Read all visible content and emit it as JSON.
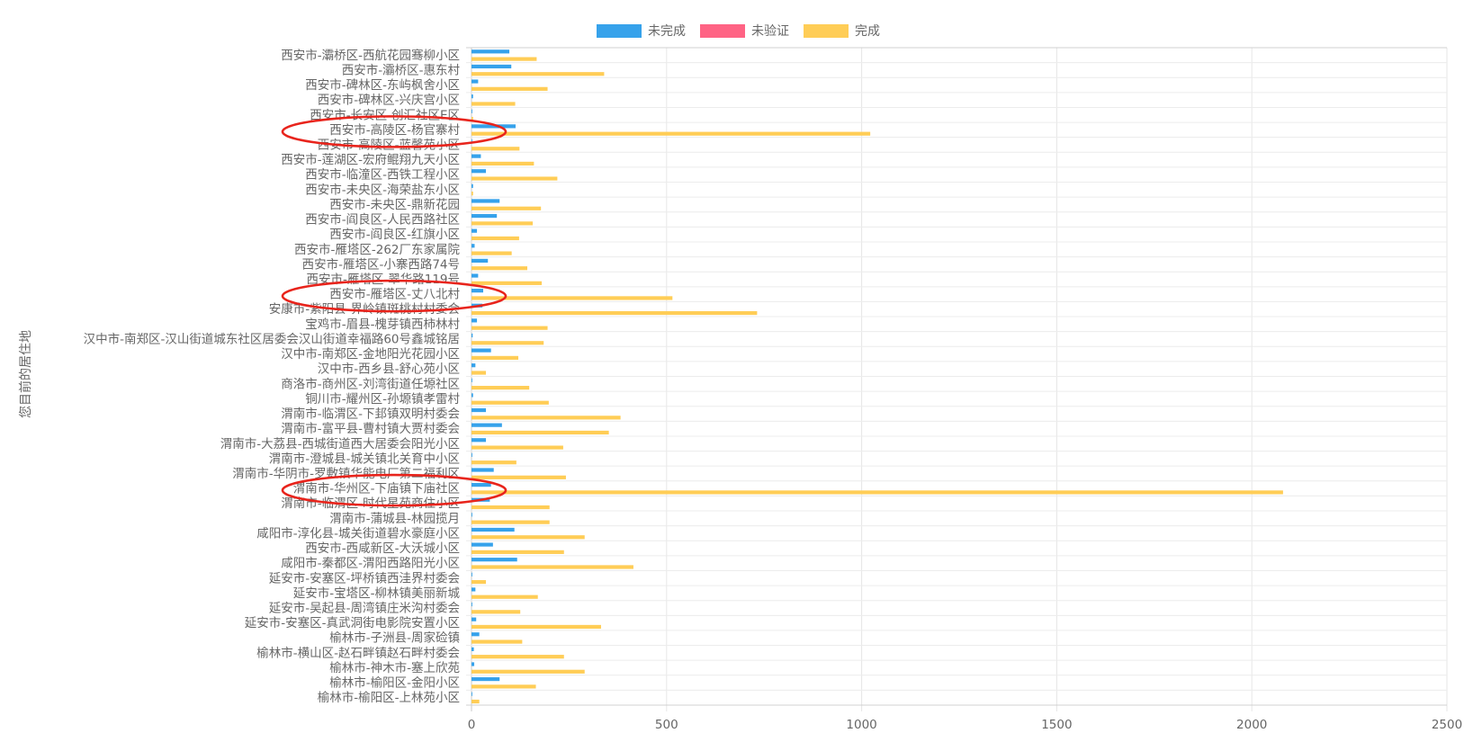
{
  "chart_data": {
    "type": "bar",
    "orientation": "horizontal",
    "ylabel": "您目前的居住地",
    "xlim": [
      0,
      2500
    ],
    "xticks": [
      0,
      500,
      1000,
      1500,
      2000,
      2500
    ],
    "grid": true,
    "legend_position": "top-center",
    "categories": [
      "西安市-灞桥区-西航花园骞柳小区",
      "西安市-灞桥区-惠东村",
      "西安市-碑林区-东屿枫舍小区",
      "西安市-碑林区-兴庆宫小区",
      "西安市-长安区-创汇社区E区",
      "西安市-高陵区-杨官寨村",
      "西安市-高陵区-蓝馨苑小区",
      "西安市-莲湖区-宏府鲲翔九天小区",
      "西安市-临潼区-西铁工程小区",
      "西安市-未央区-海荣盐东小区",
      "西安市-未央区-鼎新花园",
      "西安市-阎良区-人民西路社区",
      "西安市-阎良区-红旗小区",
      "西安市-雁塔区-262厂东家属院",
      "西安市-雁塔区-小寨西路74号",
      "西安市-雁塔区-翠华路119号",
      "西安市-雁塔区-丈八北村",
      "安康市-紫阳县-界岭镇斑桃村村委会",
      "宝鸡市-眉县-槐芽镇西柿林村",
      "汉中市-南郑区-汉山街道城东社区居委会汉山街道幸福路60号鑫城铭居",
      "汉中市-南郑区-金地阳光花园小区",
      "汉中市-西乡县-舒心苑小区",
      "商洛市-商州区-刘湾街道任塬社区",
      "铜川市-耀州区-孙塬镇孝雷村",
      "渭南市-临渭区-下邽镇双明村委会",
      "渭南市-富平县-曹村镇大贾村委会",
      "渭南市-大荔县-西城街道西大居委会阳光小区",
      "渭南市-澄城县-城关镇北关育中小区",
      "渭南市-华阴市-罗敷镇华能电厂第二福利区",
      "渭南市-华州区-下庙镇下庙社区",
      "渭南市-临渭区-时代星苑商住小区",
      "渭南市-蒲城县-林园揽月",
      "咸阳市-淳化县-城关街道碧水豪庭小区",
      "西安市-西咸新区-大沃城小区",
      "咸阳市-秦都区-渭阳西路阳光小区",
      "延安市-安塞区-坪桥镇西洼界村委会",
      "延安市-宝塔区-柳林镇美丽新城",
      "延安市-吴起县-周湾镇庄米沟村委会",
      "延安市-安塞区-真武洞街电影院安置小区",
      "榆林市-子洲县-周家硷镇",
      "榆林市-横山区-赵石畔镇赵石畔村委会",
      "榆林市-神木市-塞上欣苑",
      "榆林市-榆阳区-金阳小区",
      "榆林市-榆阳区-上林苑小区"
    ],
    "series": [
      {
        "name": "未完成",
        "color": "#36a2eb",
        "values": [
          97,
          102,
          17,
          4,
          2,
          113,
          2,
          24,
          37,
          4,
          72,
          65,
          14,
          8,
          42,
          17,
          30,
          28,
          14,
          3,
          50,
          10,
          2,
          4,
          37,
          78,
          37,
          2,
          57,
          50,
          47,
          2,
          110,
          55,
          117,
          2,
          10,
          2,
          12,
          20,
          6,
          7,
          72,
          2
        ]
      },
      {
        "name": "未验证",
        "color": "#ff6384",
        "values": [
          0,
          0,
          0,
          0,
          0,
          0,
          0,
          0,
          0,
          0,
          0,
          0,
          0,
          0,
          0,
          0,
          0,
          0,
          0,
          0,
          0,
          0,
          0,
          0,
          0,
          0,
          0,
          0,
          0,
          0,
          0,
          0,
          0,
          0,
          0,
          0,
          0,
          0,
          0,
          0,
          0,
          0,
          0,
          0
        ]
      },
      {
        "name": "完成",
        "color": "#ffcd56",
        "values": [
          167,
          340,
          195,
          112,
          4,
          1022,
          123,
          160,
          220,
          4,
          178,
          157,
          122,
          103,
          143,
          180,
          515,
          732,
          195,
          185,
          120,
          37,
          148,
          198,
          382,
          352,
          235,
          115,
          242,
          2080,
          200,
          200,
          290,
          237,
          415,
          37,
          170,
          125,
          332,
          130,
          237,
          290,
          165,
          20
        ]
      }
    ]
  },
  "annotations": {
    "highlight_color": "#e8241c",
    "highlighted_categories": [
      "西安市-高陵区-杨官寨村",
      "西安市-雁塔区-丈八北村",
      "渭南市-华州区-下庙镇下庙社区"
    ]
  }
}
